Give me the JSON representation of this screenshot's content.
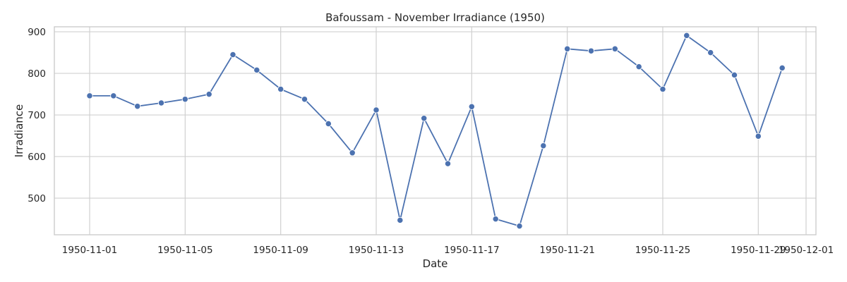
{
  "chart_data": {
    "type": "line",
    "title": "Bafoussam - November Irradiance (1950)",
    "xlabel": "Date",
    "ylabel": "Irradiance",
    "x": [
      "1950-11-01",
      "1950-11-02",
      "1950-11-03",
      "1950-11-04",
      "1950-11-05",
      "1950-11-06",
      "1950-11-07",
      "1950-11-08",
      "1950-11-09",
      "1950-11-10",
      "1950-11-11",
      "1950-11-12",
      "1950-11-13",
      "1950-11-14",
      "1950-11-15",
      "1950-11-16",
      "1950-11-17",
      "1950-11-18",
      "1950-11-19",
      "1950-11-20",
      "1950-11-21",
      "1950-11-22",
      "1950-11-23",
      "1950-11-24",
      "1950-11-25",
      "1950-11-26",
      "1950-11-27",
      "1950-11-28",
      "1950-11-29",
      "1950-11-30"
    ],
    "series": [
      {
        "values": [
          746,
          746,
          721,
          729,
          738,
          750,
          845,
          808,
          762,
          738,
          679,
          609,
          712,
          447,
          692,
          583,
          720,
          450,
          433,
          626,
          859,
          854,
          859,
          816,
          762,
          891,
          850,
          796,
          649,
          813
        ],
        "color": "#4c72b0"
      }
    ],
    "x_ticks": [
      "1950-11-01",
      "1950-11-05",
      "1950-11-09",
      "1950-11-13",
      "1950-11-17",
      "1950-11-21",
      "1950-11-25",
      "1950-11-29",
      "1950-12-01"
    ],
    "y_ticks": [
      500,
      600,
      700,
      800,
      900
    ],
    "xlim": [
      "1950-10-30",
      "1950-12-01"
    ],
    "ylim": [
      412,
      912
    ],
    "grid": true,
    "marker": "circle",
    "legend": "none"
  }
}
